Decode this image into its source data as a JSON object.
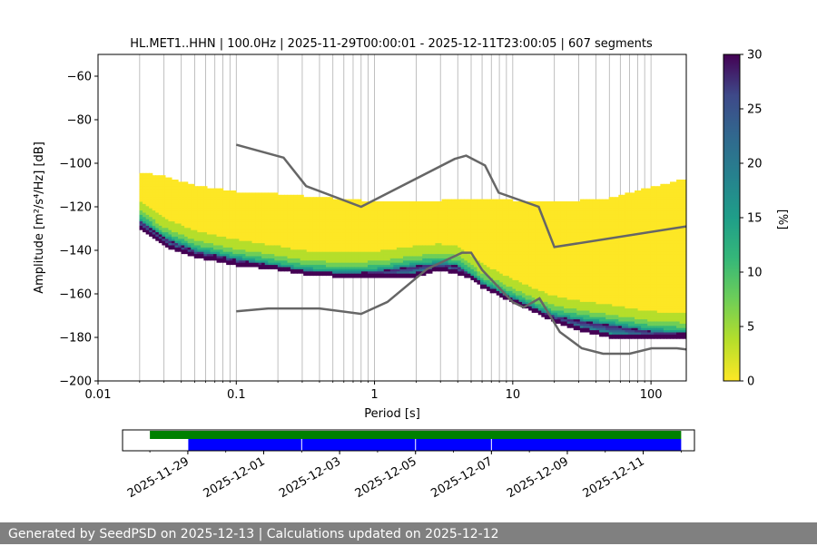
{
  "chart_data": [
    {
      "type": "heatmap",
      "title": "HL.MET1..HHN | 100.0Hz | 2025-11-29T00:00:01 - 2025-12-11T23:00:05 | 607 segments",
      "xlabel": "Period [s]",
      "ylabel": "Amplitude [m²/s⁴/Hz] [dB]",
      "x_scale": "log",
      "xlim": [
        0.01,
        180
      ],
      "ylim": [
        -200,
        -50
      ],
      "x_ticks": [
        0.01,
        0.1,
        1,
        10,
        100
      ],
      "x_tick_labels": [
        "0.01",
        "0.1",
        "1",
        "10",
        "100"
      ],
      "y_ticks": [
        -200,
        -180,
        -160,
        -140,
        -120,
        -100,
        -80,
        -60
      ],
      "y_tick_labels": [
        "−200",
        "−180",
        "−160",
        "−140",
        "−120",
        "−100",
        "−80",
        "−60"
      ],
      "grid": "x",
      "colormap": "viridis_r",
      "colorbar": {
        "label": "[%]",
        "range": [
          0,
          30
        ],
        "ticks": [
          0,
          5,
          10,
          15,
          20,
          25,
          30
        ],
        "tick_labels": [
          "0",
          "5",
          "10",
          "15",
          "20",
          "25",
          "30"
        ]
      },
      "ppsd_envelope": {
        "period": [
          0.02,
          0.03,
          0.05,
          0.1,
          0.2,
          0.3,
          0.5,
          0.8,
          1.2,
          2,
          3,
          4,
          5,
          6,
          8,
          10,
          15,
          20,
          30,
          50,
          100,
          180
        ],
        "upper_db": [
          -105,
          -107,
          -111,
          -114,
          -115,
          -116,
          -117,
          -118,
          -118,
          -118,
          -118,
          -117,
          -117,
          -117,
          -117,
          -118,
          -118,
          -118,
          -118,
          -117,
          -112,
          -108
        ],
        "lower_db": [
          -129,
          -137,
          -142,
          -146,
          -148,
          -150,
          -151,
          -152,
          -152,
          -151,
          -148,
          -150,
          -152,
          -156,
          -160,
          -163,
          -168,
          -172,
          -176,
          -179,
          -180,
          -180
        ],
        "mode_db": [
          -126,
          -134,
          -140,
          -144,
          -147,
          -149,
          -150,
          -150,
          -149,
          -147,
          -146,
          -147,
          -151,
          -155,
          -159,
          -162,
          -167,
          -170,
          -172,
          -174,
          -177,
          -178
        ],
        "max_probability_pct": 30
      },
      "nhnm": {
        "period": [
          0.1,
          0.22,
          0.32,
          0.8,
          3.8,
          4.6,
          6.3,
          7.9,
          15.4,
          20,
          180
        ],
        "db": [
          -91.5,
          -97.4,
          -110.5,
          -120,
          -98,
          -96.5,
          -101,
          -113.5,
          -120,
          -138.5,
          -129
        ]
      },
      "nlnm": {
        "period": [
          0.1,
          0.17,
          0.4,
          0.8,
          1.24,
          2.4,
          4.3,
          5,
          6,
          10,
          12,
          15.6,
          21.9,
          31.6,
          45,
          70,
          101,
          154,
          180
        ],
        "db": [
          -168,
          -166.7,
          -166.7,
          -169.2,
          -163.7,
          -148.6,
          -141.1,
          -141.1,
          -149,
          -163.8,
          -166.2,
          -162.1,
          -177.5,
          -185,
          -187.5,
          -187.5,
          -185,
          -185,
          -185.5
        ]
      }
    },
    {
      "type": "timeline",
      "x_tick_labels": [
        "2025-11-29",
        "2025-12-01",
        "2025-12-03",
        "2025-12-05",
        "2025-12-07",
        "2025-12-09",
        "2025-12-11"
      ],
      "x_range_days": [
        "2025-11-28",
        "2025-12-12"
      ],
      "data_coverage": {
        "start": "2025-11-28",
        "end": "2025-12-12",
        "color": "#008000"
      },
      "psd_segments": [
        {
          "start": "2025-11-29",
          "end": "2025-12-02",
          "color": "#0000ff"
        },
        {
          "start": "2025-12-02",
          "end": "2025-12-05",
          "color": "#0000ff"
        },
        {
          "start": "2025-12-05",
          "end": "2025-12-07",
          "color": "#0000ff"
        },
        {
          "start": "2025-12-07",
          "end": "2025-12-12",
          "color": "#0000ff"
        }
      ]
    }
  ],
  "footer": {
    "text": "Generated by SeedPSD on 2025-12-13 | Calculations updated on 2025-12-12"
  }
}
